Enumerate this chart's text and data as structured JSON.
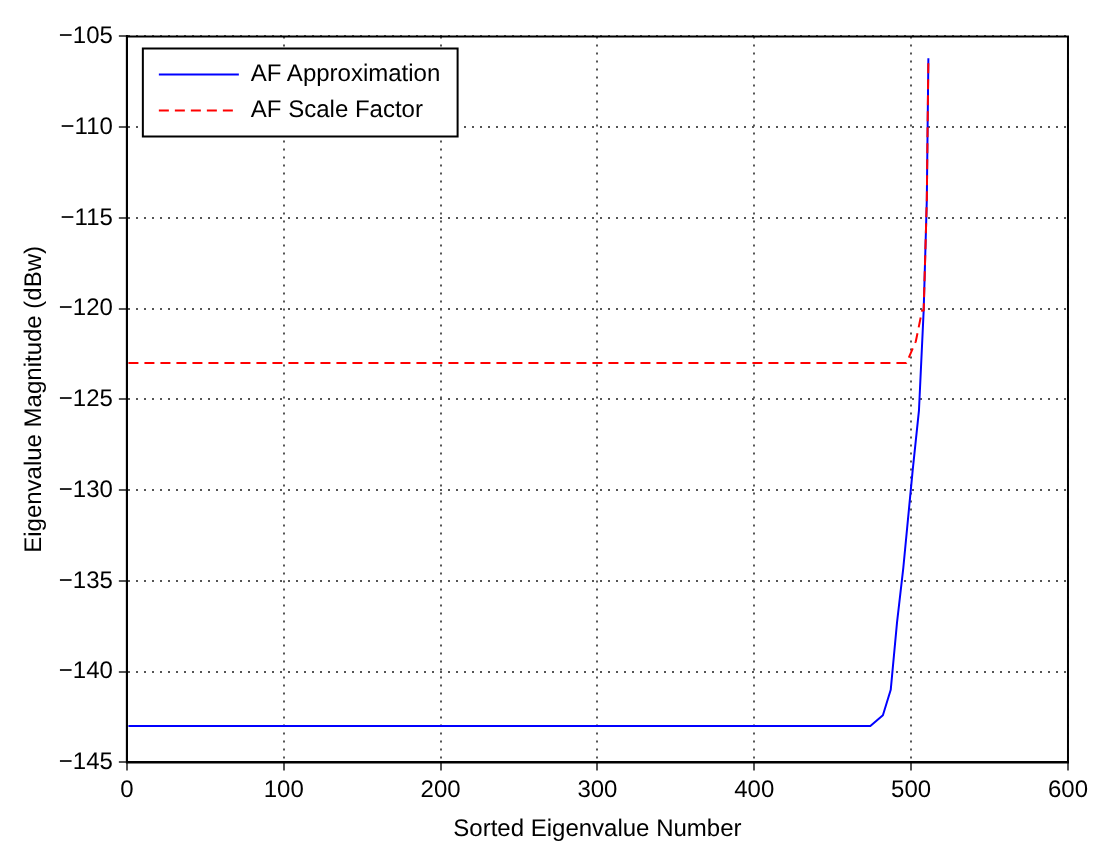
{
  "chart_data": {
    "type": "line",
    "xlabel": "Sorted Eigenvalue Number",
    "ylabel": "Eigenvalue Magnitude (dBw)",
    "series": [
      {
        "name": "AF Approximation",
        "color": "#0000ff",
        "line_style": "solid",
        "x": [
          1,
          474,
          482,
          487,
          491,
          495,
          498,
          501,
          505,
          508,
          510,
          511
        ],
        "values": [
          -143,
          -143,
          -142.4,
          -141,
          -137.3,
          -134.3,
          -131.6,
          -128.9,
          -125.6,
          -120.1,
          -114,
          -106.2
        ]
      },
      {
        "name": "AF Scale Factor",
        "color": "#ff0000",
        "line_style": "dashed",
        "x": [
          1,
          497,
          499,
          503,
          507,
          508,
          510,
          511
        ],
        "values": [
          -123,
          -123,
          -122.6,
          -121.8,
          -120.1,
          -120.1,
          -114,
          -106.2
        ]
      }
    ],
    "xlim": [
      0,
      600
    ],
    "xticks": [
      0,
      100,
      200,
      300,
      400,
      500,
      600
    ],
    "ylim": [
      -145,
      -105
    ],
    "yticks": [
      -145,
      -140,
      -135,
      -130,
      -125,
      -120,
      -115,
      -110,
      -105
    ],
    "grid": true,
    "legend": "top left",
    "marker": "none"
  }
}
